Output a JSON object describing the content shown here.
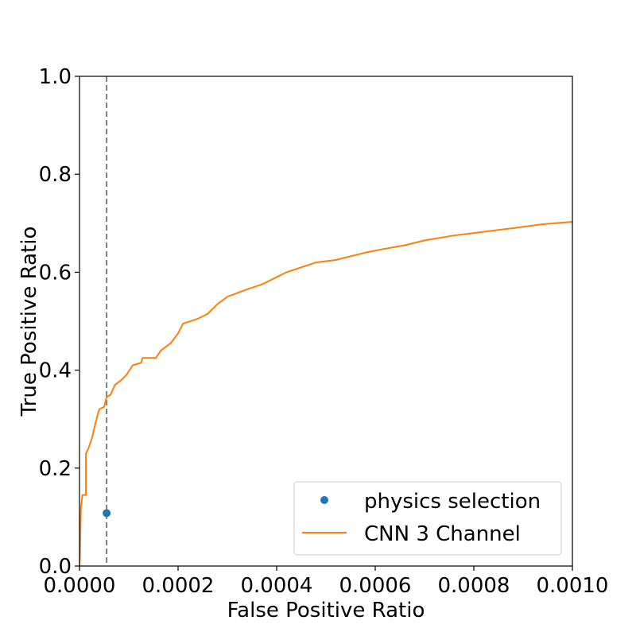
{
  "chart_data": {
    "type": "line",
    "title": "",
    "xlabel": "False Positive Ratio",
    "ylabel": "True Positive Ratio",
    "xlim": [
      0,
      0.001
    ],
    "ylim": [
      0,
      1.0
    ],
    "x_ticks": [
      "0.0000",
      "0.0002",
      "0.0004",
      "0.0006",
      "0.0008",
      "0.0010"
    ],
    "x_tick_values": [
      0,
      0.0002,
      0.0004,
      0.0006,
      0.0008,
      0.001
    ],
    "y_ticks": [
      "0.0",
      "0.2",
      "0.4",
      "0.6",
      "0.8",
      "1.0"
    ],
    "y_tick_values": [
      0,
      0.2,
      0.4,
      0.6,
      0.8,
      1.0
    ],
    "grid": false,
    "legend_position": "lower-right",
    "reference_line": {
      "orientation": "vertical",
      "x": 5.5e-05,
      "style": "dashed",
      "color": "#808080"
    },
    "series": [
      {
        "name": "physics selection",
        "kind": "scatter",
        "color": "#1f77b4",
        "points": [
          [
            5.5e-05,
            0.108
          ]
        ]
      },
      {
        "name": "CNN 3 Channel",
        "kind": "line",
        "color": "#ff7f0e",
        "points": [
          [
            0.0,
            0.0
          ],
          [
            1e-06,
            0.02
          ],
          [
            2e-06,
            0.08
          ],
          [
            3e-06,
            0.12
          ],
          [
            6e-06,
            0.145
          ],
          [
            1.3e-05,
            0.145
          ],
          [
            1.3e-05,
            0.23
          ],
          [
            1.8e-05,
            0.24
          ],
          [
            2.5e-05,
            0.26
          ],
          [
            3.2e-05,
            0.29
          ],
          [
            4e-05,
            0.32
          ],
          [
            5e-05,
            0.325
          ],
          [
            5.5e-05,
            0.345
          ],
          [
            6.3e-05,
            0.35
          ],
          [
            7.2e-05,
            0.37
          ],
          [
            8.5e-05,
            0.38
          ],
          [
            9.5e-05,
            0.39
          ],
          [
            0.000108,
            0.41
          ],
          [
            0.000125,
            0.415
          ],
          [
            0.000128,
            0.425
          ],
          [
            0.000155,
            0.425
          ],
          [
            0.000165,
            0.44
          ],
          [
            0.000185,
            0.455
          ],
          [
            0.0002,
            0.475
          ],
          [
            0.00021,
            0.495
          ],
          [
            0.00024,
            0.505
          ],
          [
            0.00026,
            0.515
          ],
          [
            0.00028,
            0.535
          ],
          [
            0.0003,
            0.55
          ],
          [
            0.00034,
            0.565
          ],
          [
            0.00037,
            0.575
          ],
          [
            0.0004,
            0.59
          ],
          [
            0.00042,
            0.6
          ],
          [
            0.00045,
            0.61
          ],
          [
            0.00048,
            0.62
          ],
          [
            0.00052,
            0.625
          ],
          [
            0.00056,
            0.635
          ],
          [
            0.00058,
            0.64
          ],
          [
            0.00062,
            0.648
          ],
          [
            0.00066,
            0.655
          ],
          [
            0.0007,
            0.665
          ],
          [
            0.00076,
            0.675
          ],
          [
            0.0008,
            0.68
          ],
          [
            0.00088,
            0.69
          ],
          [
            0.00094,
            0.698
          ],
          [
            0.001,
            0.703
          ]
        ]
      }
    ]
  }
}
